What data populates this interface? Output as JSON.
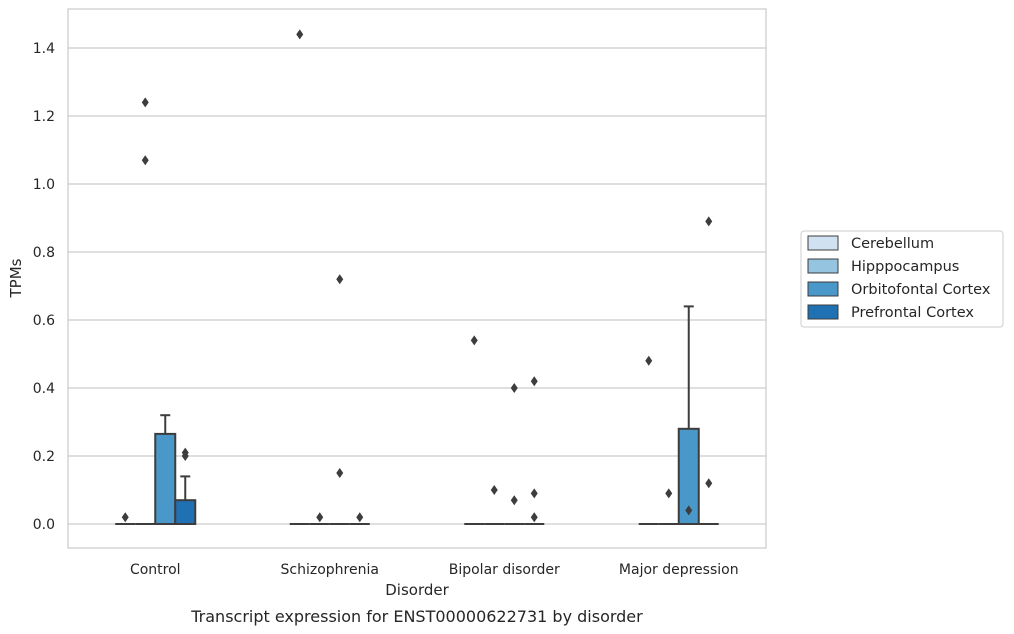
{
  "chart_data": {
    "type": "box",
    "title": "",
    "caption": "Transcript expression for ENST00000622731 by disorder",
    "xlabel": "Disorder",
    "ylabel": "TPMs",
    "ylim": [
      -0.07,
      1.52
    ],
    "yticks": [
      0.0,
      0.2,
      0.4,
      0.6,
      0.8,
      1.0,
      1.2,
      1.4
    ],
    "ytick_labels": [
      "0.0",
      "0.2",
      "0.4",
      "0.6",
      "0.8",
      "1.0",
      "1.2",
      "1.4"
    ],
    "grid": "horizontal",
    "legend_position": "right",
    "categories": [
      "Control",
      "Schizophrenia",
      "Bipolar disorder",
      "Major depression"
    ],
    "series": [
      {
        "name": "Cerebellum",
        "color": "#d0e1f2",
        "boxes": [
          {
            "q1": 0,
            "median": 0,
            "q3": 0,
            "whisker_low": 0,
            "whisker_high": 0,
            "outliers": [
              0.02
            ]
          },
          {
            "q1": 0,
            "median": 0,
            "q3": 0,
            "whisker_low": 0,
            "whisker_high": 0,
            "outliers": [
              1.44
            ]
          },
          {
            "q1": 0,
            "median": 0,
            "q3": 0,
            "whisker_low": 0,
            "whisker_high": 0,
            "outliers": [
              0.54
            ]
          },
          {
            "q1": 0,
            "median": 0,
            "q3": 0,
            "whisker_low": 0,
            "whisker_high": 0,
            "outliers": [
              0.48
            ]
          }
        ]
      },
      {
        "name": "Hipppocampus",
        "color": "#94c4df",
        "boxes": [
          {
            "q1": 0,
            "median": 0,
            "q3": 0,
            "whisker_low": 0,
            "whisker_high": 0,
            "outliers": [
              1.24,
              1.07
            ]
          },
          {
            "q1": 0,
            "median": 0,
            "q3": 0,
            "whisker_low": 0,
            "whisker_high": 0,
            "outliers": [
              0.02
            ]
          },
          {
            "q1": 0,
            "median": 0,
            "q3": 0,
            "whisker_low": 0,
            "whisker_high": 0,
            "outliers": [
              0.1
            ]
          },
          {
            "q1": 0,
            "median": 0,
            "q3": 0,
            "whisker_low": 0,
            "whisker_high": 0,
            "outliers": [
              0.09
            ]
          }
        ]
      },
      {
        "name": "Orbitofontal Cortex",
        "color": "#4a98c9",
        "boxes": [
          {
            "q1": 0,
            "median": 0,
            "q3": 0.265,
            "whisker_low": 0,
            "whisker_high": 0.32,
            "outliers": []
          },
          {
            "q1": 0,
            "median": 0,
            "q3": 0,
            "whisker_low": 0,
            "whisker_high": 0,
            "outliers": [
              0.72,
              0.15
            ]
          },
          {
            "q1": 0,
            "median": 0,
            "q3": 0,
            "whisker_low": 0,
            "whisker_high": 0,
            "outliers": [
              0.4,
              0.07
            ]
          },
          {
            "q1": 0,
            "median": 0,
            "q3": 0.28,
            "whisker_low": 0,
            "whisker_high": 0.64,
            "outliers": [
              0.04
            ]
          }
        ]
      },
      {
        "name": "Prefrontal Cortex",
        "color": "#2070b4",
        "boxes": [
          {
            "q1": 0,
            "median": 0,
            "q3": 0.07,
            "whisker_low": 0,
            "whisker_high": 0.14,
            "outliers": [
              0.21,
              0.2
            ]
          },
          {
            "q1": 0,
            "median": 0,
            "q3": 0,
            "whisker_low": 0,
            "whisker_high": 0,
            "outliers": [
              0.02
            ]
          },
          {
            "q1": 0,
            "median": 0,
            "q3": 0,
            "whisker_low": 0,
            "whisker_high": 0,
            "outliers": [
              0.42,
              0.09,
              0.02
            ]
          },
          {
            "q1": 0,
            "median": 0,
            "q3": 0,
            "whisker_low": 0,
            "whisker_high": 0,
            "outliers": [
              0.89,
              0.12
            ]
          }
        ]
      }
    ]
  }
}
